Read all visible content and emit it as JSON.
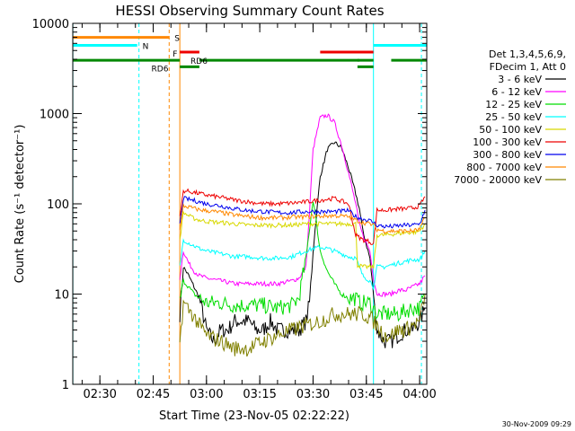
{
  "chart_data": {
    "type": "line",
    "title": "HESSI Observing Summary Count Rates",
    "xlabel": "Start Time (23-Nov-05 02:22:22)",
    "ylabel": "Count Rate (s⁻¹ detector⁻¹)",
    "yscale": "log",
    "ylim": [
      1,
      10000
    ],
    "xlim_minutes": [
      142.37,
      242
    ],
    "x_ticks": [
      "02:30",
      "02:45",
      "03:00",
      "03:15",
      "03:30",
      "03:45",
      "04:00"
    ],
    "y_ticks": [
      "1",
      "10",
      "100",
      "1000",
      "10000"
    ],
    "legend": {
      "placement": "right",
      "header": [
        "Det 1,3,4,5,6,9,",
        "FDecim 1, Att 0"
      ],
      "entries": [
        {
          "label": "3 - 6 keV",
          "color": "#000000"
        },
        {
          "label": "6 - 12 keV",
          "color": "#ff00ff"
        },
        {
          "label": "12 - 25 keV",
          "color": "#00dd00"
        },
        {
          "label": "25 - 50 keV",
          "color": "#00ffff"
        },
        {
          "label": "50 - 100 keV",
          "color": "#d8d800"
        },
        {
          "label": "100 - 300 keV",
          "color": "#ee0000"
        },
        {
          "label": "300 - 800 keV",
          "color": "#0000ee"
        },
        {
          "label": "800 - 7000 keV",
          "color": "#ff8800"
        },
        {
          "label": "7000 - 20000 keV",
          "color": "#808000"
        }
      ]
    },
    "flag_bars": [
      {
        "label": "S",
        "color": "#ff8800",
        "y": 7000,
        "segments": [
          [
            142.4,
            169.5
          ]
        ]
      },
      {
        "label": "N",
        "color": "#00ffff",
        "y": 5700,
        "segments": [
          [
            142.4,
            160.5
          ],
          [
            227,
            242
          ]
        ]
      },
      {
        "label": "F",
        "color": "#ee0000",
        "y": 4800,
        "segments": [
          [
            172.5,
            178
          ],
          [
            212,
            227
          ]
        ]
      },
      {
        "label": "RD6",
        "color": "#008800",
        "y": 3900,
        "segments": [
          [
            142.4,
            172.5
          ],
          [
            178,
            223
          ],
          [
            222.5,
            227
          ],
          [
            232,
            242
          ]
        ]
      },
      {
        "label": "RD6",
        "color": "#008800",
        "y": 3300,
        "segments": [
          [
            172.5,
            178
          ],
          [
            222.5,
            227
          ]
        ]
      }
    ],
    "flag_texts": [
      {
        "text": "S",
        "color": "#ff8800",
        "x": 171,
        "y": 7000
      },
      {
        "text": "N",
        "color": "#00ffff",
        "x": 162,
        "y": 5700
      },
      {
        "text": "F",
        "color": "#ee0000",
        "x": 170.5,
        "y": 4700
      },
      {
        "text": "RD6",
        "color": "#008800",
        "x": 175.5,
        "y": 3900
      },
      {
        "text": "RD6",
        "color": "#008800",
        "x": 164.5,
        "y": 3200
      }
    ],
    "vlines": [
      {
        "x": 142.4,
        "color": "#00ffff",
        "style": "solid"
      },
      {
        "x": 161.0,
        "color": "#00ffff",
        "style": "dashed"
      },
      {
        "x": 169.5,
        "color": "#ff8800",
        "style": "dashed"
      },
      {
        "x": 172.5,
        "color": "#ff8800",
        "style": "solid"
      },
      {
        "x": 227.0,
        "color": "#00ffff",
        "style": "solid"
      },
      {
        "x": 240.5,
        "color": "#00ffff",
        "style": "dashed"
      }
    ],
    "series": [
      {
        "name": "3 - 6 keV",
        "color": "#000000",
        "x": [
          172.5,
          173.5,
          175,
          176.5,
          178,
          180,
          182,
          184,
          186,
          188,
          190,
          192,
          194,
          196,
          198,
          200,
          202,
          204,
          206,
          208,
          209,
          210,
          212,
          214,
          216,
          218,
          220,
          222,
          223,
          224,
          226,
          227,
          228,
          230,
          232,
          234,
          236,
          238,
          240,
          241.5
        ],
        "y": [
          6,
          20,
          16,
          12,
          9,
          4,
          3,
          4,
          4,
          5,
          5,
          5,
          4,
          4,
          5,
          4,
          4,
          4,
          4,
          5,
          8,
          30,
          200,
          400,
          480,
          420,
          250,
          130,
          90,
          50,
          25,
          10,
          4,
          3,
          3,
          3.5,
          4,
          4,
          5,
          7
        ]
      },
      {
        "name": "6 - 12 keV",
        "color": "#ff00ff",
        "x": [
          172.5,
          173.5,
          175,
          176.5,
          178,
          180,
          184,
          188,
          192,
          196,
          200,
          204,
          206,
          208,
          209,
          210,
          212,
          214,
          216,
          218,
          220,
          222,
          223,
          224,
          226,
          227,
          228,
          230,
          232,
          234,
          236,
          238,
          240,
          241.5
        ],
        "y": [
          15,
          30,
          22,
          18,
          16,
          15,
          14,
          13,
          13,
          13,
          13,
          14,
          15,
          20,
          80,
          400,
          900,
          960,
          800,
          450,
          220,
          100,
          60,
          45,
          30,
          15,
          10,
          10,
          10,
          11,
          11,
          12,
          13,
          16
        ]
      },
      {
        "name": "12 - 25 keV",
        "color": "#00dd00",
        "x": [
          172.5,
          173.5,
          175,
          176.5,
          178,
          180,
          184,
          188,
          192,
          196,
          200,
          204,
          206,
          208,
          210,
          211,
          212,
          214,
          216,
          218,
          220,
          222,
          223,
          224,
          226,
          227,
          228,
          230,
          232,
          234,
          236,
          238,
          240,
          241.5
        ],
        "y": [
          8,
          14,
          12,
          10,
          9,
          8,
          8,
          7.5,
          7.5,
          7.5,
          7,
          7.5,
          9,
          25,
          110,
          60,
          30,
          18,
          13,
          10,
          9,
          9,
          8,
          8,
          8,
          7,
          6,
          6,
          6,
          6,
          6.5,
          7,
          7,
          10
        ]
      },
      {
        "name": "25 - 50 keV",
        "color": "#00ffff",
        "x": [
          172.5,
          173.5,
          176,
          178,
          180,
          184,
          188,
          192,
          196,
          200,
          204,
          206,
          208,
          210,
          212,
          214,
          216,
          218,
          220,
          222,
          224,
          226,
          227,
          228,
          230,
          232,
          234,
          236,
          238,
          240,
          241.5
        ],
        "y": [
          20,
          40,
          35,
          32,
          30,
          28,
          26,
          26,
          25,
          25,
          26,
          28,
          30,
          32,
          33,
          32,
          30,
          28,
          26,
          25,
          16,
          14,
          12,
          20,
          20,
          21,
          22,
          23,
          24,
          24,
          30
        ]
      },
      {
        "name": "50 - 100 keV",
        "color": "#d8d800",
        "x": [
          172.5,
          173.5,
          176,
          178,
          180,
          184,
          188,
          192,
          196,
          200,
          204,
          208,
          212,
          216,
          220,
          222,
          222.5,
          224,
          226,
          227,
          228,
          230,
          232,
          234,
          236,
          238,
          240,
          241.5
        ],
        "y": [
          40,
          80,
          70,
          66,
          64,
          62,
          60,
          58,
          58,
          58,
          58,
          60,
          60,
          60,
          60,
          60,
          21,
          20,
          20,
          20,
          45,
          45,
          46,
          47,
          48,
          48,
          50,
          60
        ]
      },
      {
        "name": "100 - 300 keV",
        "color": "#ee0000",
        "x": [
          172.5,
          173.5,
          176,
          178,
          180,
          184,
          188,
          192,
          196,
          200,
          204,
          208,
          212,
          216,
          220,
          222,
          224,
          226,
          227,
          228,
          230,
          232,
          234,
          236,
          238,
          240,
          241.5
        ],
        "y": [
          70,
          140,
          135,
          130,
          125,
          118,
          110,
          105,
          100,
          100,
          102,
          105,
          110,
          115,
          100,
          45,
          40,
          38,
          36,
          85,
          85,
          86,
          88,
          88,
          90,
          95,
          120
        ]
      },
      {
        "name": "300 - 800 keV",
        "color": "#0000ee",
        "x": [
          172.5,
          173.5,
          176,
          178,
          180,
          184,
          188,
          192,
          196,
          200,
          204,
          208,
          212,
          216,
          220,
          222,
          224,
          226,
          227,
          228,
          230,
          232,
          234,
          236,
          238,
          240,
          241.5
        ],
        "y": [
          60,
          115,
          110,
          105,
          100,
          95,
          88,
          84,
          82,
          80,
          80,
          82,
          82,
          82,
          84,
          72,
          68,
          65,
          62,
          58,
          56,
          56,
          57,
          58,
          58,
          60,
          85
        ]
      },
      {
        "name": "800 - 7000 keV",
        "color": "#ff8800",
        "x": [
          172.5,
          173.5,
          176,
          178,
          180,
          184,
          188,
          192,
          196,
          200,
          204,
          208,
          212,
          216,
          220,
          222,
          224,
          226,
          227,
          228,
          230,
          232,
          234,
          236,
          238,
          240,
          241.5
        ],
        "y": [
          50,
          95,
          90,
          86,
          84,
          80,
          75,
          72,
          70,
          70,
          71,
          72,
          73,
          74,
          72,
          66,
          62,
          60,
          58,
          52,
          50,
          50,
          50,
          50,
          50,
          52,
          70
        ]
      },
      {
        "name": "7000 - 20000 keV",
        "color": "#808000",
        "x": [
          172.5,
          173.5,
          176,
          178,
          180,
          184,
          188,
          192,
          196,
          200,
          204,
          208,
          212,
          216,
          220,
          222,
          224,
          226,
          227,
          228,
          230,
          232,
          234,
          236,
          238,
          240,
          241.5
        ],
        "y": [
          3,
          8,
          6,
          4.5,
          3.5,
          3,
          2.5,
          2.5,
          3,
          3.5,
          4,
          4.5,
          5,
          6,
          6,
          6,
          6,
          5.5,
          5,
          4.5,
          3.5,
          3.5,
          4,
          4,
          4.5,
          5,
          10
        ]
      }
    ],
    "footer_date": "30-Nov-2009 09:29"
  }
}
